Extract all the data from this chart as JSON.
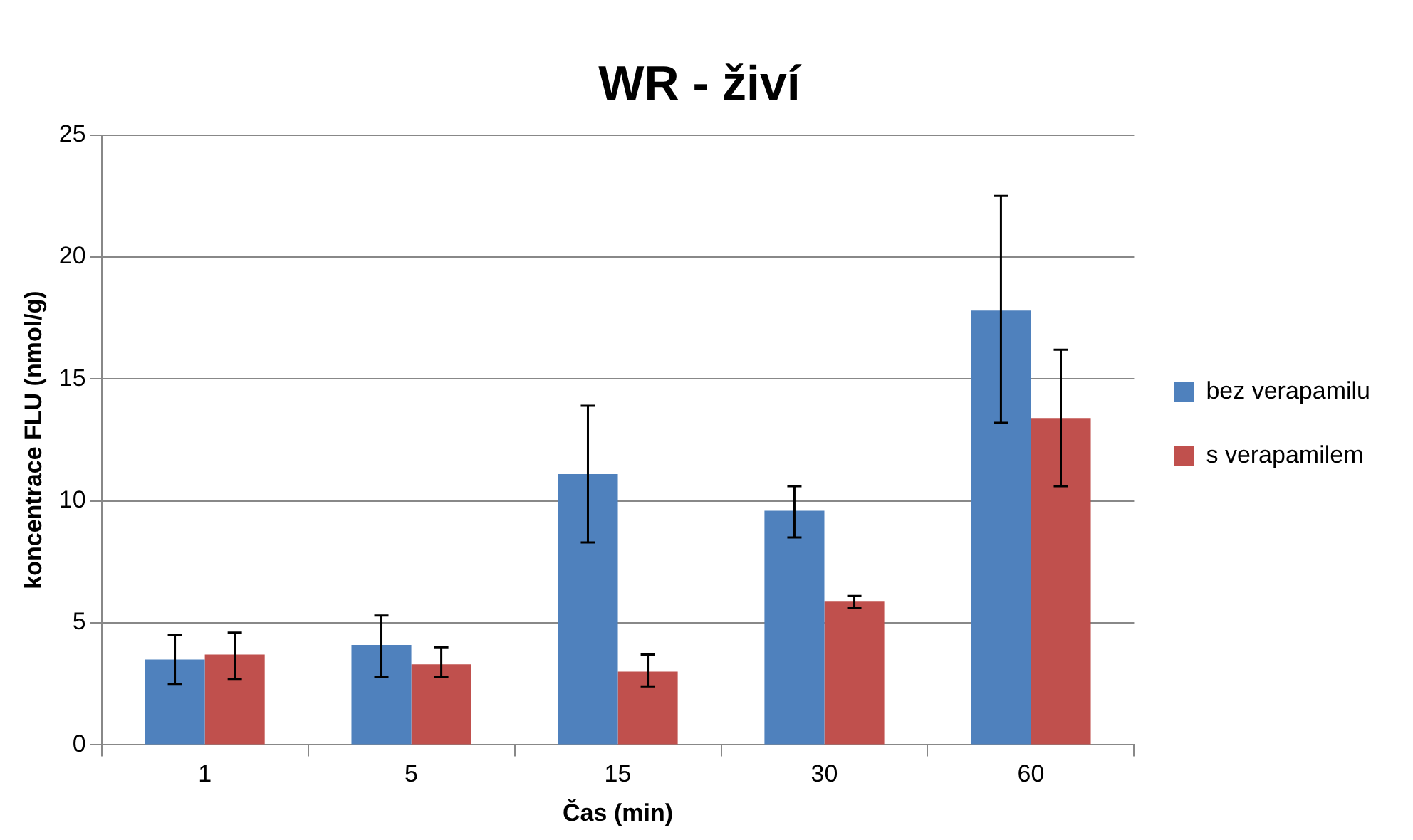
{
  "chart_data": {
    "type": "bar",
    "title": "WR - živí",
    "xlabel": "Čas (min)",
    "ylabel": "koncentrace FLU (nmol/g)",
    "categories": [
      "1",
      "5",
      "15",
      "30",
      "60"
    ],
    "series": [
      {
        "name": "bez verapamilu",
        "color": "#4f81bd",
        "values": [
          3.5,
          4.1,
          11.1,
          9.6,
          17.8
        ],
        "errors": [
          [
            2.5,
            4.5
          ],
          [
            2.8,
            5.3
          ],
          [
            8.3,
            13.9
          ],
          [
            8.5,
            10.6
          ],
          [
            13.2,
            22.5
          ]
        ]
      },
      {
        "name": "s verapamilem",
        "color": "#c0504d",
        "values": [
          3.7,
          3.3,
          3.0,
          5.9,
          13.4
        ],
        "errors": [
          [
            2.7,
            4.6
          ],
          [
            2.8,
            4.0
          ],
          [
            2.4,
            3.7
          ],
          [
            5.6,
            6.1
          ],
          [
            10.6,
            16.2
          ]
        ]
      }
    ],
    "ylim": [
      0,
      25
    ],
    "yticks": [
      0,
      5,
      10,
      15,
      20,
      25
    ],
    "grid": "y",
    "legend": "right"
  }
}
